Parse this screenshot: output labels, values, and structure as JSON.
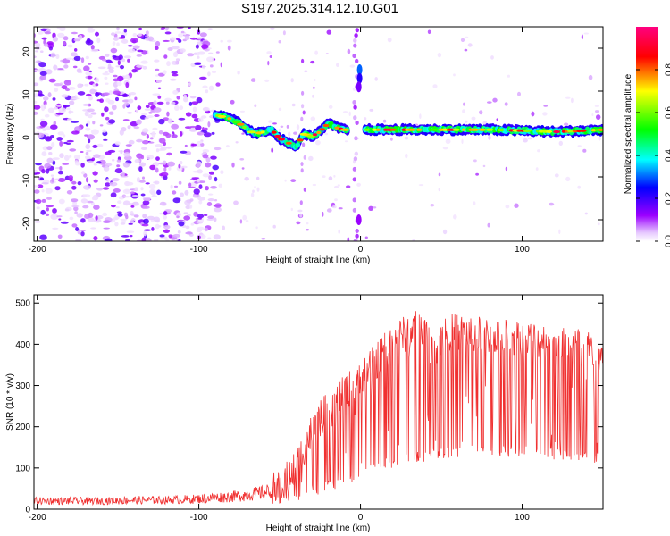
{
  "figure_title": "S197.2025.314.12.10.G01",
  "chart_data": [
    {
      "type": "heatmap",
      "title": "S197.2025.314.12.10.G01",
      "xlabel": "Height of straight line (km)",
      "ylabel": "Frequency (Hz)",
      "xlim": [
        -202,
        150
      ],
      "ylim": [
        -25,
        25
      ],
      "xticks": [
        -200,
        -100,
        0,
        100
      ],
      "xtick_labels": [
        "-200",
        "-100",
        "0",
        "100"
      ],
      "yticks": [
        -20,
        -10,
        0,
        10,
        20
      ],
      "ytick_labels": [
        "-20",
        "-10",
        "0",
        "10",
        "20"
      ],
      "colorbar": {
        "label": "Normalized spectral amplitude",
        "range": [
          0,
          1
        ],
        "ticks": [
          0.0,
          0.2,
          0.4,
          0.6,
          0.8
        ],
        "tick_labels": [
          "0.0",
          "0.2",
          "0.4",
          "0.6",
          "0.8"
        ],
        "colors": [
          "#ffffff",
          "#9b00ff",
          "#0000ff",
          "#00ffff",
          "#00ff00",
          "#ffff00",
          "#ff0000",
          "#ff0080"
        ]
      },
      "signal_track": [
        {
          "x": -90,
          "f": 4.5
        },
        {
          "x": -85,
          "f": 4.0
        },
        {
          "x": -80,
          "f": 3.5
        },
        {
          "x": -75,
          "f": 2.5
        },
        {
          "x": -70,
          "f": 1.0
        },
        {
          "x": -65,
          "f": 0.0
        },
        {
          "x": -60,
          "f": 0.5
        },
        {
          "x": -55,
          "f": 1.0
        },
        {
          "x": -50,
          "f": -1.0
        },
        {
          "x": -45,
          "f": -2.0
        },
        {
          "x": -40,
          "f": -3.0
        },
        {
          "x": -35,
          "f": 0.0
        },
        {
          "x": -30,
          "f": -0.5
        },
        {
          "x": -25,
          "f": 0.5
        },
        {
          "x": -20,
          "f": 2.5
        },
        {
          "x": -15,
          "f": 1.5
        },
        {
          "x": -10,
          "f": 1.0
        },
        {
          "x": 0,
          "f": 1.0
        },
        {
          "x": 20,
          "f": 1.0
        },
        {
          "x": 40,
          "f": 1.0
        },
        {
          "x": 60,
          "f": 1.0
        },
        {
          "x": 80,
          "f": 1.0
        },
        {
          "x": 100,
          "f": 0.8
        },
        {
          "x": 120,
          "f": 0.5
        },
        {
          "x": 140,
          "f": 0.8
        },
        {
          "x": 150,
          "f": 1.0
        }
      ]
    },
    {
      "type": "line",
      "xlabel": "Height of straight line (km)",
      "ylabel": "SNR (10 * v/v)",
      "xlim": [
        -202,
        150
      ],
      "ylim": [
        0,
        520
      ],
      "xticks": [
        -200,
        -100,
        0,
        100
      ],
      "xtick_labels": [
        "-200",
        "-100",
        "0",
        "100"
      ],
      "yticks": [
        0,
        100,
        200,
        300,
        400,
        500
      ],
      "ytick_labels": [
        "0",
        "100",
        "200",
        "300",
        "400",
        "500"
      ],
      "series": [
        {
          "name": "SNR",
          "color": "#f03030",
          "x": [
            -202,
            -180,
            -160,
            -140,
            -120,
            -100,
            -90,
            -80,
            -70,
            -60,
            -50,
            -45,
            -40,
            -35,
            -30,
            -25,
            -20,
            -15,
            -10,
            -5,
            0,
            5,
            10,
            15,
            20,
            25,
            30,
            35,
            40,
            45,
            50,
            55,
            60,
            70,
            80,
            90,
            100,
            110,
            120,
            130,
            140,
            145,
            150
          ],
          "values": [
            20,
            20,
            20,
            22,
            22,
            25,
            28,
            30,
            35,
            40,
            50,
            75,
            100,
            150,
            190,
            220,
            240,
            260,
            280,
            300,
            320,
            340,
            360,
            390,
            410,
            420,
            430,
            440,
            430,
            380,
            420,
            430,
            430,
            425,
            420,
            420,
            415,
            410,
            410,
            400,
            395,
            380,
            360
          ]
        }
      ],
      "lower_envelope": {
        "x": [
          -50,
          -40,
          -30,
          -20,
          -10,
          0,
          10,
          20,
          30,
          40,
          50,
          60,
          70,
          80,
          90,
          100,
          110,
          120,
          130,
          140
        ],
        "values": [
          10,
          20,
          30,
          40,
          60,
          70,
          90,
          100,
          110,
          115,
          120,
          120,
          125,
          125,
          125,
          125,
          125,
          120,
          115,
          110
        ]
      }
    }
  ]
}
